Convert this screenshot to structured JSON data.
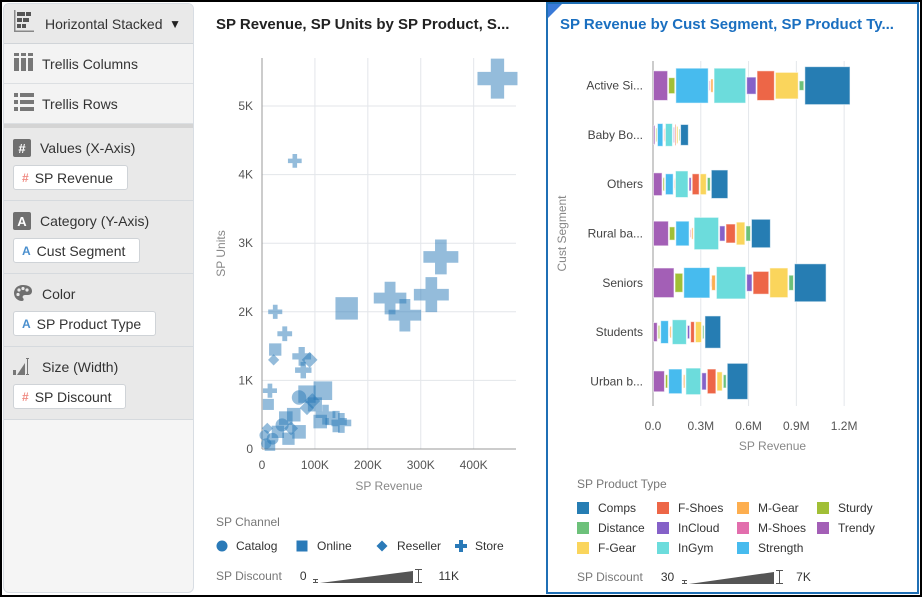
{
  "panel": {
    "vis_type": {
      "label": "Horizontal Stacked",
      "icon": "horizontal-stacked-icon"
    },
    "options": [
      {
        "label": "Trellis Columns",
        "icon": "trellis-columns-icon"
      },
      {
        "label": "Trellis Rows",
        "icon": "trellis-rows-icon"
      }
    ],
    "sections": [
      {
        "title": "Values (X-Axis)",
        "icon": "hash-icon",
        "icon_glyph": "#",
        "pill": {
          "label": "SP Revenue",
          "type": "measure",
          "glyph": "#"
        }
      },
      {
        "title": "Category (Y-Axis)",
        "icon": "attribute-icon",
        "icon_glyph": "A",
        "pill": {
          "label": "Cust Segment",
          "type": "attribute",
          "glyph": "A"
        }
      },
      {
        "title": "Color",
        "icon": "palette-icon",
        "pill": {
          "label": "SP Product Type",
          "type": "attribute",
          "glyph": "A"
        }
      },
      {
        "title": "Size (Width)",
        "icon": "size-icon",
        "pill": {
          "label": "SP Discount",
          "type": "measure",
          "glyph": "#"
        }
      }
    ]
  },
  "chart_data": [
    {
      "type": "scatter",
      "title": "SP Revenue, SP Units by SP Product, S...",
      "xlabel": "SP Revenue",
      "ylabel": "SP Units",
      "xlim": [
        0,
        480000
      ],
      "ylim": [
        0,
        5700
      ],
      "xticks": [
        "0",
        "100K",
        "200K",
        "300K",
        "400K"
      ],
      "xtick_values": [
        0,
        100000,
        200000,
        300000,
        400000
      ],
      "yticks": [
        "0",
        "1K",
        "2K",
        "3K",
        "4K",
        "5K"
      ],
      "ytick_values": [
        0,
        1000,
        2000,
        3000,
        4000,
        5000
      ],
      "grid": true,
      "color": "#2a7ab8",
      "legend": {
        "title": "SP Channel",
        "placement": "bottom",
        "items": [
          {
            "label": "Catalog",
            "shape": "circle"
          },
          {
            "label": "Online",
            "shape": "square"
          },
          {
            "label": "Reseller",
            "shape": "diamond"
          },
          {
            "label": "Store",
            "shape": "plus"
          }
        ]
      },
      "size_legend": {
        "title": "SP Discount",
        "min": "0",
        "max": "11K"
      },
      "points": [
        {
          "x": 445000,
          "y": 5400,
          "s": 9500,
          "shape": "plus"
        },
        {
          "x": 62000,
          "y": 4200,
          "s": 1700,
          "shape": "plus"
        },
        {
          "x": 338000,
          "y": 2800,
          "s": 8000,
          "shape": "plus"
        },
        {
          "x": 320000,
          "y": 2250,
          "s": 8000,
          "shape": "plus"
        },
        {
          "x": 242000,
          "y": 2200,
          "s": 7300,
          "shape": "plus"
        },
        {
          "x": 270000,
          "y": 1950,
          "s": 7300,
          "shape": "plus"
        },
        {
          "x": 160000,
          "y": 2050,
          "s": 6500,
          "shape": "square"
        },
        {
          "x": 25000,
          "y": 2000,
          "s": 1800,
          "shape": "plus"
        },
        {
          "x": 43000,
          "y": 1680,
          "s": 2000,
          "shape": "plus"
        },
        {
          "x": 25000,
          "y": 1450,
          "s": 2500,
          "shape": "square"
        },
        {
          "x": 22000,
          "y": 1300,
          "s": 1800,
          "shape": "diamond"
        },
        {
          "x": 75000,
          "y": 1350,
          "s": 3200,
          "shape": "plus"
        },
        {
          "x": 90000,
          "y": 1300,
          "s": 3500,
          "shape": "diamond"
        },
        {
          "x": 78000,
          "y": 1150,
          "s": 2500,
          "shape": "plus"
        },
        {
          "x": 15000,
          "y": 850,
          "s": 1800,
          "shape": "plus"
        },
        {
          "x": 115000,
          "y": 850,
          "s": 5000,
          "shape": "square"
        },
        {
          "x": 85000,
          "y": 800,
          "s": 4500,
          "shape": "square"
        },
        {
          "x": 95000,
          "y": 700,
          "s": 3500,
          "shape": "diamond"
        },
        {
          "x": 70000,
          "y": 750,
          "s": 3000,
          "shape": "circle"
        },
        {
          "x": 12000,
          "y": 650,
          "s": 2000,
          "shape": "square"
        },
        {
          "x": 120000,
          "y": 500,
          "s": 3500,
          "shape": "plus"
        },
        {
          "x": 140000,
          "y": 400,
          "s": 4000,
          "shape": "plus"
        },
        {
          "x": 150000,
          "y": 380,
          "s": 3500,
          "shape": "plus"
        },
        {
          "x": 110000,
          "y": 400,
          "s": 3000,
          "shape": "square"
        },
        {
          "x": 60000,
          "y": 500,
          "s": 3000,
          "shape": "square"
        },
        {
          "x": 45000,
          "y": 450,
          "s": 3000,
          "shape": "square"
        },
        {
          "x": 38000,
          "y": 350,
          "s": 2500,
          "shape": "circle"
        },
        {
          "x": 55000,
          "y": 300,
          "s": 2800,
          "shape": "diamond"
        },
        {
          "x": 70000,
          "y": 250,
          "s": 3000,
          "shape": "square"
        },
        {
          "x": 30000,
          "y": 250,
          "s": 2500,
          "shape": "square"
        },
        {
          "x": 20000,
          "y": 150,
          "s": 2000,
          "shape": "circle"
        },
        {
          "x": 10000,
          "y": 300,
          "s": 1800,
          "shape": "diamond"
        },
        {
          "x": 8000,
          "y": 80,
          "s": 1500,
          "shape": "circle"
        },
        {
          "x": 15000,
          "y": 50,
          "s": 1800,
          "shape": "square"
        },
        {
          "x": 50000,
          "y": 150,
          "s": 2500,
          "shape": "square"
        },
        {
          "x": 85000,
          "y": 600,
          "s": 3000,
          "shape": "diamond"
        },
        {
          "x": 100000,
          "y": 650,
          "s": 3200,
          "shape": "square"
        },
        {
          "x": 5000,
          "y": 200,
          "s": 1500,
          "shape": "circle"
        }
      ]
    },
    {
      "type": "bar",
      "orientation": "horizontal-stacked",
      "title": "SP Revenue by Cust Segment, SP Product Ty...",
      "xlabel": "SP Revenue",
      "ylabel": "Cust Segment",
      "xlim": [
        0,
        1400000
      ],
      "xticks": [
        "0.0",
        "0.3M",
        "0.6M",
        "0.9M",
        "1.2M"
      ],
      "xtick_values": [
        0,
        300000,
        600000,
        900000,
        1200000
      ],
      "grid": true,
      "categories": [
        "Active Si...",
        "Baby Bo...",
        "Others",
        "Rural ba...",
        "Seniors",
        "Students",
        "Urban b..."
      ],
      "stack_order": [
        "Trendy",
        "Sturdy",
        "Strength",
        "M-Shoes",
        "M-Gear",
        "InGym",
        "InCloud",
        "F-Shoes",
        "F-Gear",
        "Distance",
        "Comps"
      ],
      "series": [
        {
          "name": "Trendy",
          "color": "#a35fb6",
          "values": [
            95000,
            15000,
            60000,
            100000,
            135000,
            30000,
            75000
          ],
          "size": [
            0.78,
            0.5,
            0.6,
            0.65,
            0.78,
            0.5,
            0.55
          ]
        },
        {
          "name": "Sturdy",
          "color": "#a1bf36",
          "values": [
            45000,
            10000,
            15000,
            40000,
            55000,
            15000,
            20000
          ],
          "size": [
            0.42,
            0.35,
            0.35,
            0.35,
            0.5,
            0.35,
            0.35
          ]
        },
        {
          "name": "Strength",
          "color": "#47bbee",
          "values": [
            210000,
            40000,
            55000,
            90000,
            170000,
            55000,
            90000
          ],
          "size": [
            0.92,
            0.6,
            0.55,
            0.65,
            0.8,
            0.6,
            0.65
          ]
        },
        {
          "name": "M-Shoes",
          "color": "#e26ead",
          "values": [
            10000,
            5000,
            3000,
            10000,
            5000,
            3000,
            3000
          ],
          "size": [
            0.25,
            0.3,
            0.2,
            0.2,
            0.2,
            0.2,
            0.2
          ]
        },
        {
          "name": "M-Gear",
          "color": "#fdae4f",
          "values": [
            20000,
            5000,
            5000,
            15000,
            30000,
            15000,
            15000
          ],
          "size": [
            0.35,
            0.35,
            0.3,
            0.3,
            0.4,
            0.3,
            0.35
          ]
        },
        {
          "name": "InGym",
          "color": "#6cdcdc",
          "values": [
            205000,
            50000,
            85000,
            160000,
            190000,
            95000,
            100000
          ],
          "size": [
            0.92,
            0.6,
            0.7,
            0.85,
            0.85,
            0.65,
            0.7
          ]
        },
        {
          "name": "InCloud",
          "color": "#8561c8",
          "values": [
            65000,
            10000,
            20000,
            40000,
            40000,
            20000,
            35000
          ],
          "size": [
            0.45,
            0.4,
            0.35,
            0.4,
            0.45,
            0.35,
            0.45
          ]
        },
        {
          "name": "F-Shoes",
          "color": "#ed6647",
          "values": [
            115000,
            10000,
            50000,
            65000,
            105000,
            30000,
            60000
          ],
          "size": [
            0.78,
            0.55,
            0.55,
            0.5,
            0.6,
            0.55,
            0.65
          ]
        },
        {
          "name": "F-Gear",
          "color": "#fad55c",
          "values": [
            150000,
            15000,
            45000,
            60000,
            120000,
            45000,
            40000
          ],
          "size": [
            0.7,
            0.45,
            0.55,
            0.6,
            0.78,
            0.55,
            0.5
          ]
        },
        {
          "name": "Distance",
          "color": "#6dc17a",
          "values": [
            35000,
            10000,
            25000,
            35000,
            35000,
            15000,
            25000
          ],
          "size": [
            0.25,
            0.3,
            0.35,
            0.4,
            0.4,
            0.35,
            0.35
          ]
        },
        {
          "name": "Comps",
          "color": "#267db3",
          "values": [
            290000,
            55000,
            110000,
            125000,
            205000,
            105000,
            135000
          ],
          "size": [
            1.0,
            0.55,
            0.75,
            0.75,
            1.0,
            0.85,
            0.95
          ]
        }
      ],
      "legend": {
        "title": "SP Product Type",
        "placement": "bottom",
        "items": [
          {
            "label": "Comps",
            "color": "#267db3"
          },
          {
            "label": "F-Shoes",
            "color": "#ed6647"
          },
          {
            "label": "M-Gear",
            "color": "#fdae4f"
          },
          {
            "label": "Sturdy",
            "color": "#a1bf36"
          },
          {
            "label": "Distance",
            "color": "#6dc17a"
          },
          {
            "label": "InCloud",
            "color": "#8561c8"
          },
          {
            "label": "M-Shoes",
            "color": "#e26ead"
          },
          {
            "label": "Trendy",
            "color": "#a35fb6"
          },
          {
            "label": "F-Gear",
            "color": "#fad55c"
          },
          {
            "label": "InGym",
            "color": "#6cdcdc"
          },
          {
            "label": "Strength",
            "color": "#47bbee"
          }
        ]
      },
      "size_legend": {
        "title": "SP Discount",
        "min": "30",
        "max": "7K"
      }
    }
  ]
}
